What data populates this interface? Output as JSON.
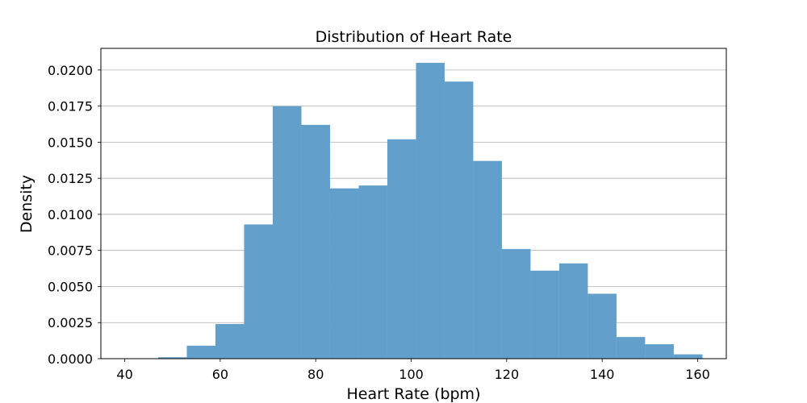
{
  "chart_data": {
    "type": "bar",
    "title": "Distribution of Heart Rate",
    "xlabel": "Heart Rate (bpm)",
    "ylabel": "Density",
    "xlim": [
      35,
      166
    ],
    "ylim": [
      0,
      0.0215
    ],
    "xticks": [
      "40",
      "60",
      "80",
      "100",
      "120",
      "140",
      "160"
    ],
    "yticks": [
      "0.0000",
      "0.0025",
      "0.0050",
      "0.0075",
      "0.0100",
      "0.0125",
      "0.0150",
      "0.0175",
      "0.0200"
    ],
    "grid": "y",
    "bar_color": "#62a0cb",
    "bins": [
      {
        "x0": 41.0,
        "x1": 47.0,
        "value": 0.0
      },
      {
        "x0": 47.0,
        "x1": 53.0,
        "value": 0.0001
      },
      {
        "x0": 53.0,
        "x1": 59.0,
        "value": 0.0009
      },
      {
        "x0": 59.0,
        "x1": 65.0,
        "value": 0.0024
      },
      {
        "x0": 65.0,
        "x1": 71.0,
        "value": 0.0093
      },
      {
        "x0": 71.0,
        "x1": 77.0,
        "value": 0.0175
      },
      {
        "x0": 77.0,
        "x1": 83.0,
        "value": 0.0162
      },
      {
        "x0": 83.0,
        "x1": 89.0,
        "value": 0.0118
      },
      {
        "x0": 89.0,
        "x1": 95.0,
        "value": 0.012
      },
      {
        "x0": 95.0,
        "x1": 101.0,
        "value": 0.0152
      },
      {
        "x0": 101.0,
        "x1": 107.0,
        "value": 0.0205
      },
      {
        "x0": 107.0,
        "x1": 113.0,
        "value": 0.0192
      },
      {
        "x0": 113.0,
        "x1": 119.0,
        "value": 0.0137
      },
      {
        "x0": 119.0,
        "x1": 125.0,
        "value": 0.0076
      },
      {
        "x0": 125.0,
        "x1": 131.0,
        "value": 0.0061
      },
      {
        "x0": 131.0,
        "x1": 137.0,
        "value": 0.0066
      },
      {
        "x0": 137.0,
        "x1": 143.0,
        "value": 0.0045
      },
      {
        "x0": 143.0,
        "x1": 149.0,
        "value": 0.0015
      },
      {
        "x0": 149.0,
        "x1": 155.0,
        "value": 0.001
      },
      {
        "x0": 155.0,
        "x1": 161.0,
        "value": 0.0003
      }
    ]
  }
}
